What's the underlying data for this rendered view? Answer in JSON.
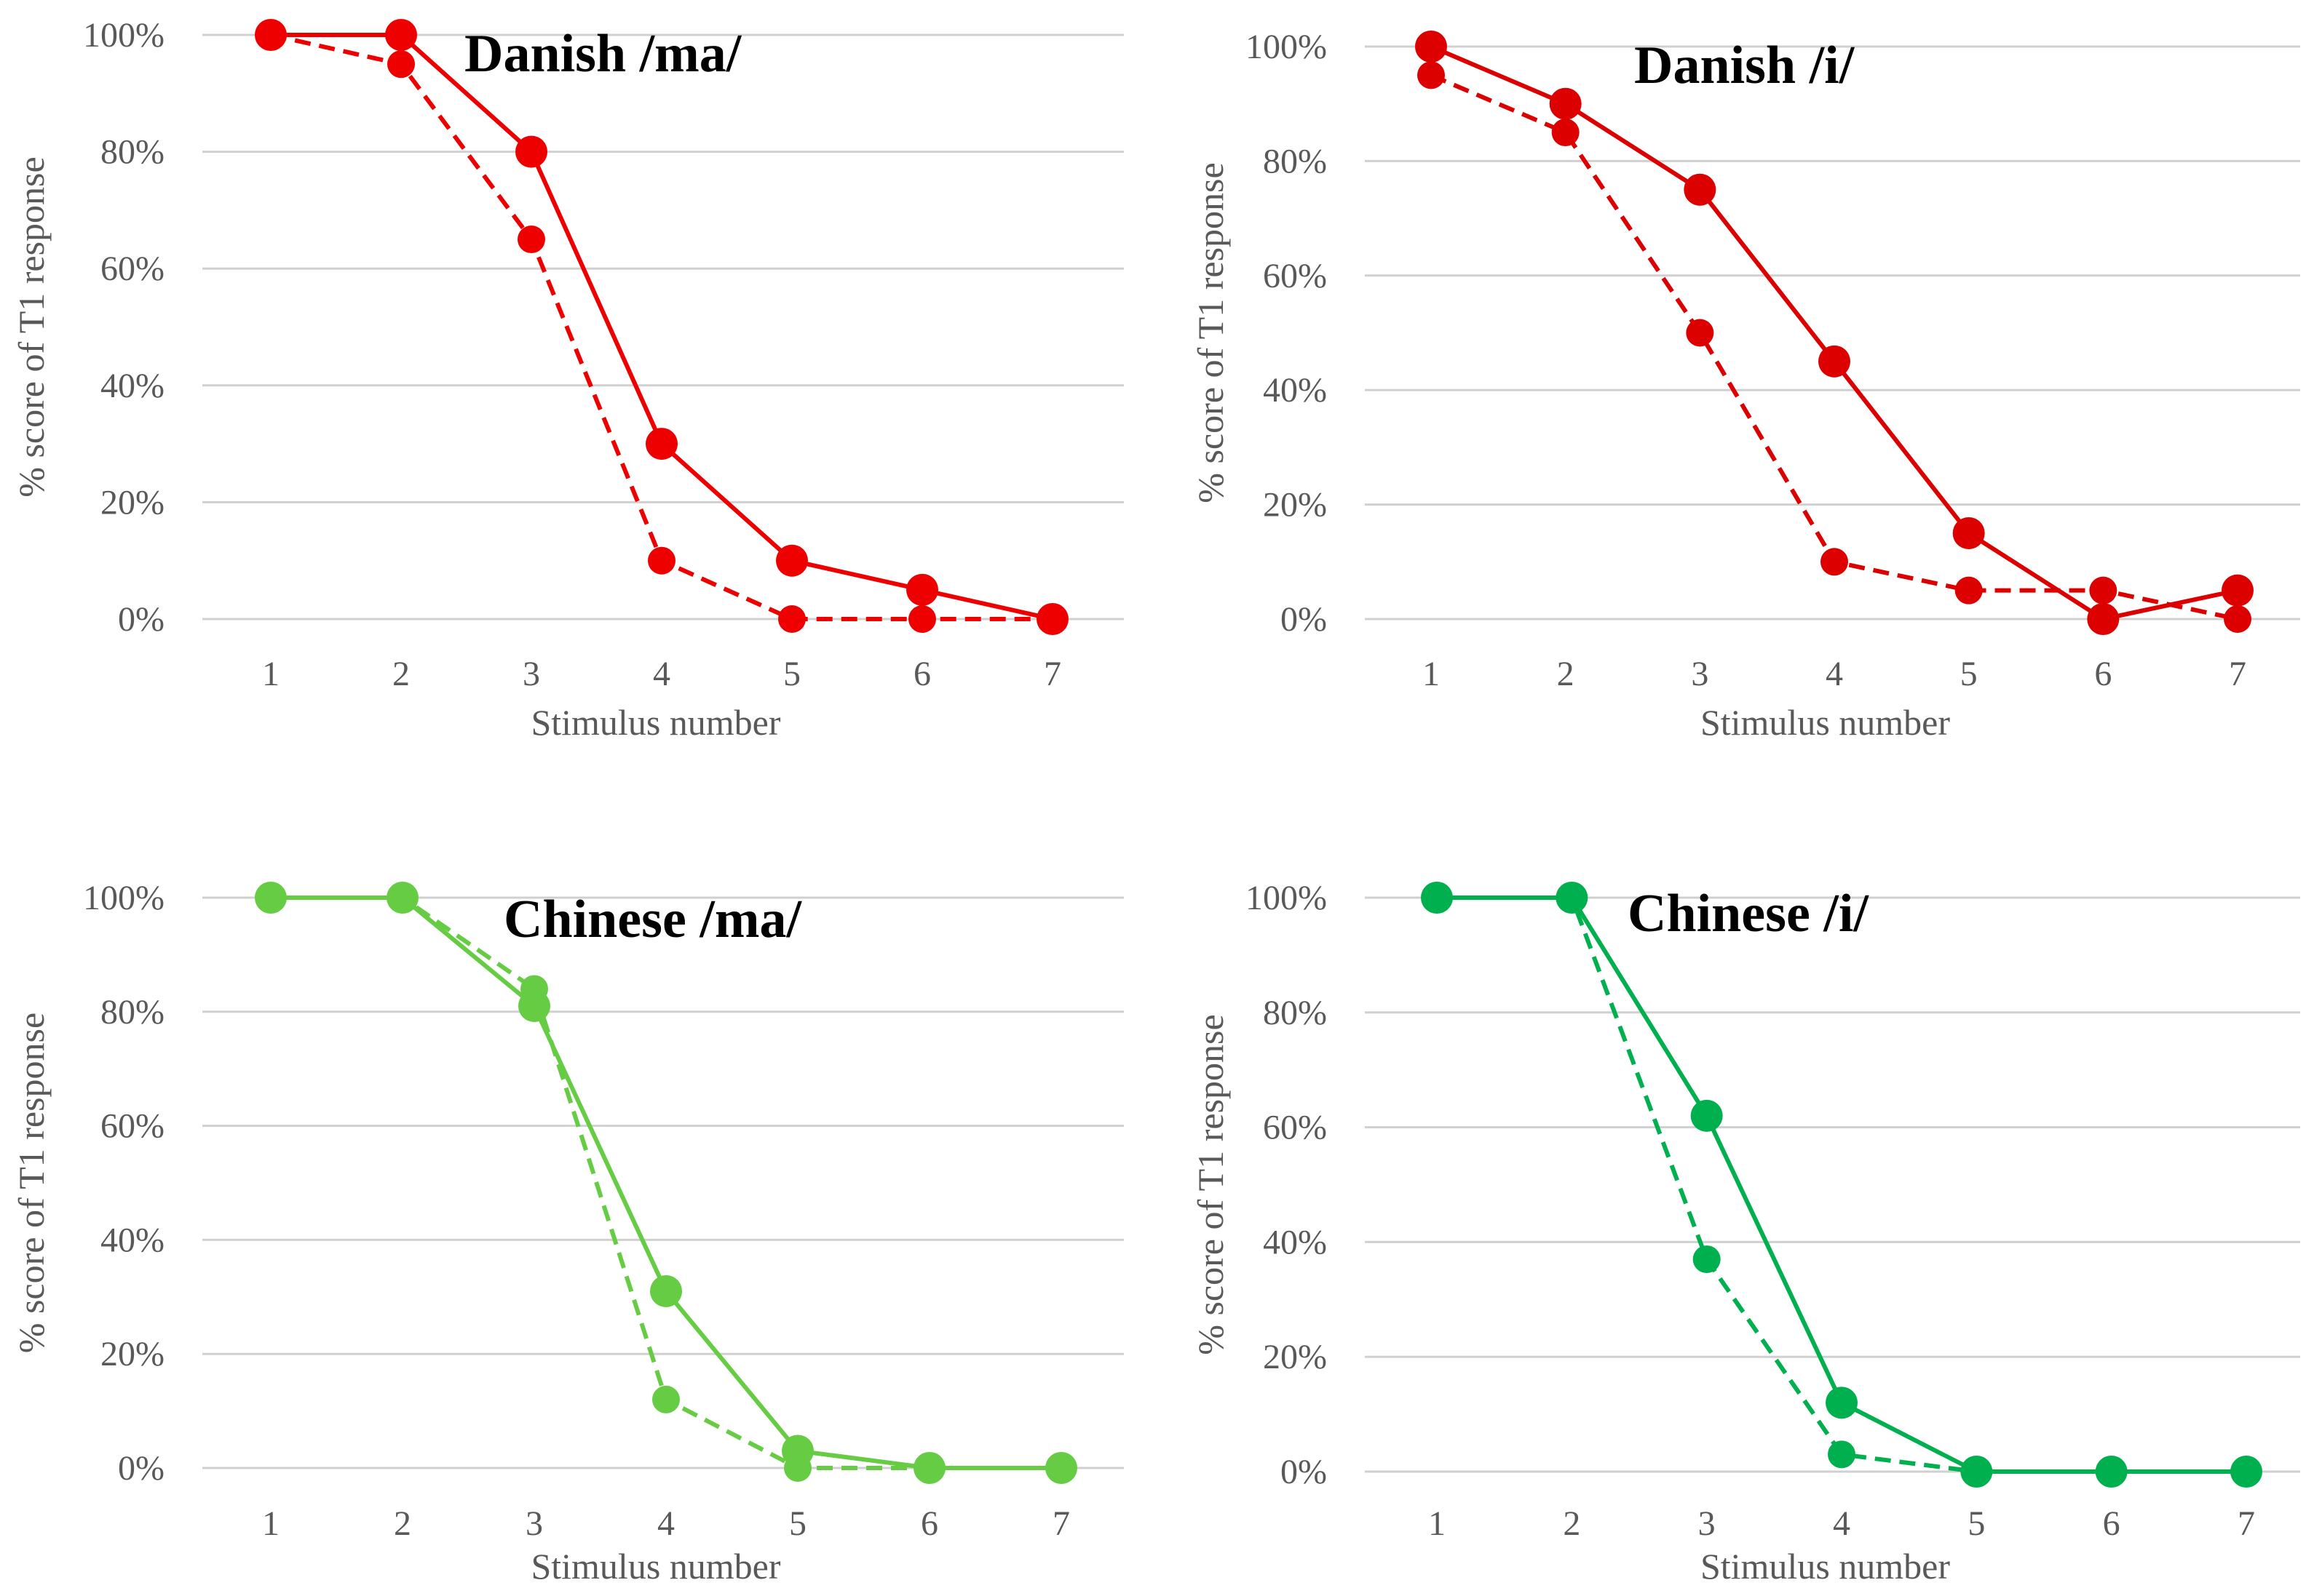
{
  "chart_data": [
    {
      "type": "line",
      "title": "Danish /ma/",
      "xlabel": "Stimulus number",
      "ylabel": "% score of T1 response",
      "x": [
        1,
        2,
        3,
        4,
        5,
        6,
        7
      ],
      "ylim": [
        0,
        100
      ],
      "yticks": [
        "0%",
        "20%",
        "40%",
        "60%",
        "80%",
        "100%"
      ],
      "grid": true,
      "color": "#ee0000",
      "series": [
        {
          "style": "solid",
          "values": [
            100,
            100,
            80,
            30,
            10,
            5,
            0
          ]
        },
        {
          "style": "dashed",
          "values": [
            100,
            95,
            65,
            10,
            0,
            0,
            0
          ]
        }
      ]
    },
    {
      "type": "line",
      "title": "Danish /i/",
      "xlabel": "Stimulus number",
      "ylabel": "% score of T1 response",
      "x": [
        1,
        2,
        3,
        4,
        5,
        6,
        7
      ],
      "ylim": [
        0,
        100
      ],
      "yticks": [
        "0%",
        "20%",
        "40%",
        "60%",
        "80%",
        "100%"
      ],
      "grid": true,
      "color": "#dd0000",
      "series": [
        {
          "style": "solid",
          "values": [
            100,
            90,
            75,
            45,
            15,
            0,
            5
          ]
        },
        {
          "style": "dashed",
          "values": [
            95,
            85,
            50,
            10,
            5,
            5,
            0
          ]
        }
      ]
    },
    {
      "type": "line",
      "title": "Chinese /ma/",
      "xlabel": "Stimulus number",
      "ylabel": "% score of T1 response",
      "x": [
        1,
        2,
        3,
        4,
        5,
        6,
        7
      ],
      "ylim": [
        0,
        100
      ],
      "yticks": [
        "0%",
        "20%",
        "40%",
        "60%",
        "80%",
        "100%"
      ],
      "grid": true,
      "color": "#66cc44",
      "series": [
        {
          "style": "solid",
          "values": [
            100,
            100,
            81,
            31,
            3,
            0,
            0
          ]
        },
        {
          "style": "dashed",
          "values": [
            100,
            100,
            84,
            12,
            0,
            0,
            0
          ]
        }
      ]
    },
    {
      "type": "line",
      "title": "Chinese /i/",
      "xlabel": "Stimulus number",
      "ylabel": "% score of T1 response",
      "x": [
        1,
        2,
        3,
        4,
        5,
        6,
        7
      ],
      "ylim": [
        0,
        100
      ],
      "yticks": [
        "0%",
        "20%",
        "40%",
        "60%",
        "80%",
        "100%"
      ],
      "grid": true,
      "color": "#00b04f",
      "series": [
        {
          "style": "solid",
          "values": [
            100,
            100,
            62,
            12,
            0,
            0,
            0
          ]
        },
        {
          "style": "dashed",
          "values": [
            100,
            100,
            37,
            3,
            0,
            0,
            0
          ]
        }
      ]
    }
  ]
}
